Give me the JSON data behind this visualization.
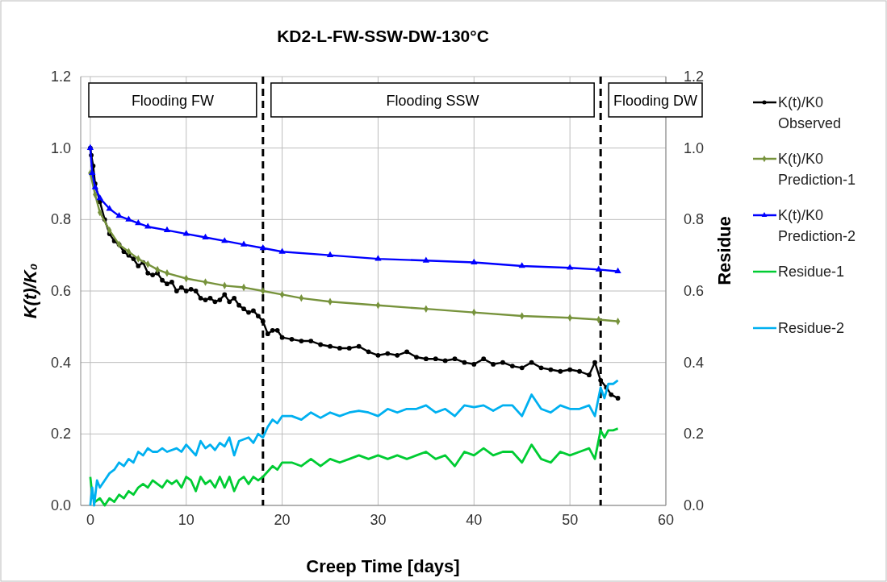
{
  "chart_data": {
    "type": "line",
    "title": "KD2-L-FW-SSW-DW-130°C",
    "xlabel": "Creep Time [days]",
    "ylabel": "K(t)/K₀",
    "y2label": "Residue",
    "xlim": [
      -1,
      60
    ],
    "xticks": [
      0,
      10,
      20,
      30,
      40,
      50,
      60
    ],
    "ylim": [
      0,
      1.2
    ],
    "yticks": [
      {
        "value": 0,
        "label": "0.0"
      },
      {
        "value": 0.2,
        "label": "0.2"
      },
      {
        "value": 0.4,
        "label": "0.4"
      },
      {
        "value": 0.6,
        "label": "0.6"
      },
      {
        "value": 0.8,
        "label": "0.8"
      },
      {
        "value": 1,
        "label": "1.0"
      },
      {
        "value": 1.2,
        "label": "1.2"
      }
    ],
    "y2lim": [
      0,
      1.2
    ],
    "y2ticks": [
      {
        "value": 0,
        "label": "0.0"
      },
      {
        "value": 0.2,
        "label": "0.2"
      },
      {
        "value": 0.4,
        "label": "0.4"
      },
      {
        "value": 0.6,
        "label": "0.6"
      },
      {
        "value": 0.8,
        "label": "0.8"
      },
      {
        "value": 1,
        "label": "1.0"
      },
      {
        "value": 1.2,
        "label": "1.2"
      }
    ],
    "grid": true,
    "legend": "right",
    "line_style": "solid",
    "ref_lines": [
      {
        "axis": "x",
        "value": 18,
        "color": "#000000",
        "line_style": "dashed"
      },
      {
        "axis": "x",
        "value": 53.2,
        "color": "#000000",
        "line_style": "dashed"
      }
    ],
    "annotations": [
      "Flooding FW",
      "Flooding SSW",
      "Flooding DW"
    ],
    "series": [
      {
        "name": "K(t)/K0 Observed",
        "color": "#000000",
        "marker": "circle",
        "x": [
          0,
          0.1,
          0.3,
          0.5,
          1,
          1.5,
          2,
          2.5,
          3,
          3.5,
          4,
          4.5,
          5,
          5.5,
          6,
          6.5,
          7,
          7.5,
          8,
          8.5,
          9,
          9.5,
          10,
          10.5,
          11,
          11.5,
          12,
          12.5,
          13,
          13.5,
          14,
          14.5,
          15,
          15.5,
          16,
          16.5,
          17,
          17.5,
          18,
          18.5,
          19,
          19.5,
          20,
          21,
          22,
          23,
          24,
          25,
          26,
          27,
          28,
          29,
          30,
          31,
          32,
          33,
          34,
          35,
          36,
          37,
          38,
          39,
          40,
          41,
          42,
          43,
          44,
          45,
          46,
          47,
          48,
          49,
          50,
          51,
          52,
          52.6,
          53.2,
          53.8,
          54.3,
          55
        ],
        "values": [
          1.0,
          0.98,
          0.95,
          0.9,
          0.85,
          0.8,
          0.76,
          0.74,
          0.73,
          0.71,
          0.7,
          0.69,
          0.67,
          0.68,
          0.65,
          0.645,
          0.65,
          0.63,
          0.62,
          0.625,
          0.6,
          0.61,
          0.6,
          0.605,
          0.6,
          0.58,
          0.575,
          0.58,
          0.57,
          0.575,
          0.59,
          0.57,
          0.58,
          0.56,
          0.55,
          0.54,
          0.545,
          0.53,
          0.515,
          0.48,
          0.49,
          0.49,
          0.47,
          0.465,
          0.46,
          0.46,
          0.45,
          0.445,
          0.44,
          0.44,
          0.445,
          0.43,
          0.42,
          0.425,
          0.42,
          0.43,
          0.415,
          0.41,
          0.41,
          0.405,
          0.41,
          0.4,
          0.395,
          0.41,
          0.395,
          0.4,
          0.39,
          0.385,
          0.4,
          0.385,
          0.38,
          0.375,
          0.38,
          0.375,
          0.365,
          0.4,
          0.35,
          0.33,
          0.31,
          0.3
        ]
      },
      {
        "name": "K(t)/K0 Prediction-1",
        "color": "#77933c",
        "marker": "diamond",
        "x": [
          0,
          0.5,
          1,
          2,
          3,
          4,
          5,
          6,
          7,
          8,
          10,
          12,
          14,
          16,
          18,
          20,
          22,
          25,
          30,
          35,
          40,
          45,
          50,
          53,
          55
        ],
        "values": [
          0.93,
          0.87,
          0.82,
          0.77,
          0.73,
          0.71,
          0.69,
          0.675,
          0.66,
          0.65,
          0.635,
          0.625,
          0.615,
          0.61,
          0.6,
          0.59,
          0.58,
          0.57,
          0.56,
          0.55,
          0.54,
          0.53,
          0.525,
          0.52,
          0.515
        ]
      },
      {
        "name": "K(t)/K0 Prediction-2",
        "color": "#0000ff",
        "marker": "triangle",
        "x": [
          0,
          0.2,
          0.5,
          1,
          2,
          3,
          4,
          5,
          6,
          8,
          10,
          12,
          14,
          16,
          18,
          20,
          25,
          30,
          35,
          40,
          45,
          50,
          53,
          55
        ],
        "values": [
          1.0,
          0.93,
          0.89,
          0.86,
          0.83,
          0.81,
          0.8,
          0.79,
          0.78,
          0.77,
          0.76,
          0.75,
          0.74,
          0.73,
          0.72,
          0.71,
          0.7,
          0.69,
          0.685,
          0.68,
          0.67,
          0.665,
          0.66,
          0.655
        ]
      },
      {
        "name": "Residue-1",
        "color": "#00cc33",
        "marker": "none",
        "axis": "y2",
        "x": [
          0,
          0.2,
          0.5,
          1,
          1.5,
          2,
          2.5,
          3,
          3.5,
          4,
          4.5,
          5,
          5.5,
          6,
          6.5,
          7,
          7.5,
          8,
          8.5,
          9,
          9.5,
          10,
          10.5,
          11,
          11.5,
          12,
          12.5,
          13,
          13.5,
          14,
          14.5,
          15,
          15.5,
          16,
          16.5,
          17,
          17.5,
          18,
          19,
          19.5,
          20,
          21,
          22,
          23,
          24,
          25,
          26,
          27,
          28,
          29,
          30,
          31,
          32,
          33,
          34,
          35,
          36,
          37,
          38,
          39,
          40,
          41,
          42,
          43,
          44,
          45,
          46,
          47,
          48,
          49,
          50,
          51,
          52,
          52.6,
          53.2,
          53.6,
          54,
          54.5,
          55
        ],
        "values": [
          0.08,
          0.03,
          0.01,
          0.02,
          0.0,
          0.02,
          0.01,
          0.03,
          0.02,
          0.04,
          0.03,
          0.05,
          0.06,
          0.05,
          0.07,
          0.06,
          0.05,
          0.07,
          0.06,
          0.07,
          0.05,
          0.08,
          0.07,
          0.04,
          0.08,
          0.06,
          0.07,
          0.05,
          0.08,
          0.05,
          0.08,
          0.04,
          0.07,
          0.08,
          0.06,
          0.08,
          0.07,
          0.08,
          0.11,
          0.1,
          0.12,
          0.12,
          0.11,
          0.13,
          0.11,
          0.13,
          0.12,
          0.13,
          0.14,
          0.13,
          0.14,
          0.13,
          0.14,
          0.13,
          0.14,
          0.15,
          0.13,
          0.14,
          0.11,
          0.15,
          0.14,
          0.16,
          0.14,
          0.15,
          0.15,
          0.12,
          0.17,
          0.13,
          0.12,
          0.15,
          0.14,
          0.15,
          0.16,
          0.13,
          0.21,
          0.19,
          0.21,
          0.21,
          0.215
        ]
      },
      {
        "name": "Residue-2",
        "color": "#00b0f0",
        "marker": "none",
        "axis": "y2",
        "x": [
          0,
          0.2,
          0.4,
          0.7,
          1,
          1.5,
          2,
          2.5,
          3,
          3.5,
          4,
          4.5,
          5,
          5.5,
          6,
          6.5,
          7,
          7.5,
          8,
          9,
          9.5,
          10,
          10.5,
          11,
          11.5,
          12,
          12.5,
          13,
          13.5,
          14,
          14.5,
          15,
          15.5,
          16,
          16.5,
          17,
          17.5,
          18,
          18.5,
          19,
          19.5,
          20,
          21,
          22,
          23,
          24,
          25,
          26,
          27,
          28,
          29,
          30,
          31,
          32,
          33,
          34,
          35,
          36,
          37,
          38,
          39,
          40,
          41,
          42,
          43,
          44,
          45,
          46,
          47,
          48,
          49,
          50,
          51,
          52,
          52.6,
          53.2,
          53.6,
          54,
          54.5,
          55
        ],
        "values": [
          0.0,
          0.05,
          0.0,
          0.07,
          0.05,
          0.07,
          0.09,
          0.1,
          0.12,
          0.11,
          0.13,
          0.12,
          0.15,
          0.14,
          0.16,
          0.15,
          0.15,
          0.16,
          0.15,
          0.16,
          0.15,
          0.17,
          0.155,
          0.14,
          0.18,
          0.16,
          0.17,
          0.155,
          0.175,
          0.165,
          0.19,
          0.14,
          0.18,
          0.185,
          0.19,
          0.175,
          0.2,
          0.19,
          0.22,
          0.24,
          0.23,
          0.25,
          0.25,
          0.24,
          0.26,
          0.245,
          0.26,
          0.25,
          0.26,
          0.265,
          0.26,
          0.25,
          0.27,
          0.26,
          0.27,
          0.27,
          0.28,
          0.26,
          0.27,
          0.25,
          0.28,
          0.275,
          0.28,
          0.265,
          0.28,
          0.28,
          0.25,
          0.31,
          0.27,
          0.26,
          0.28,
          0.27,
          0.27,
          0.28,
          0.25,
          0.33,
          0.3,
          0.34,
          0.34,
          0.35
        ]
      }
    ]
  }
}
